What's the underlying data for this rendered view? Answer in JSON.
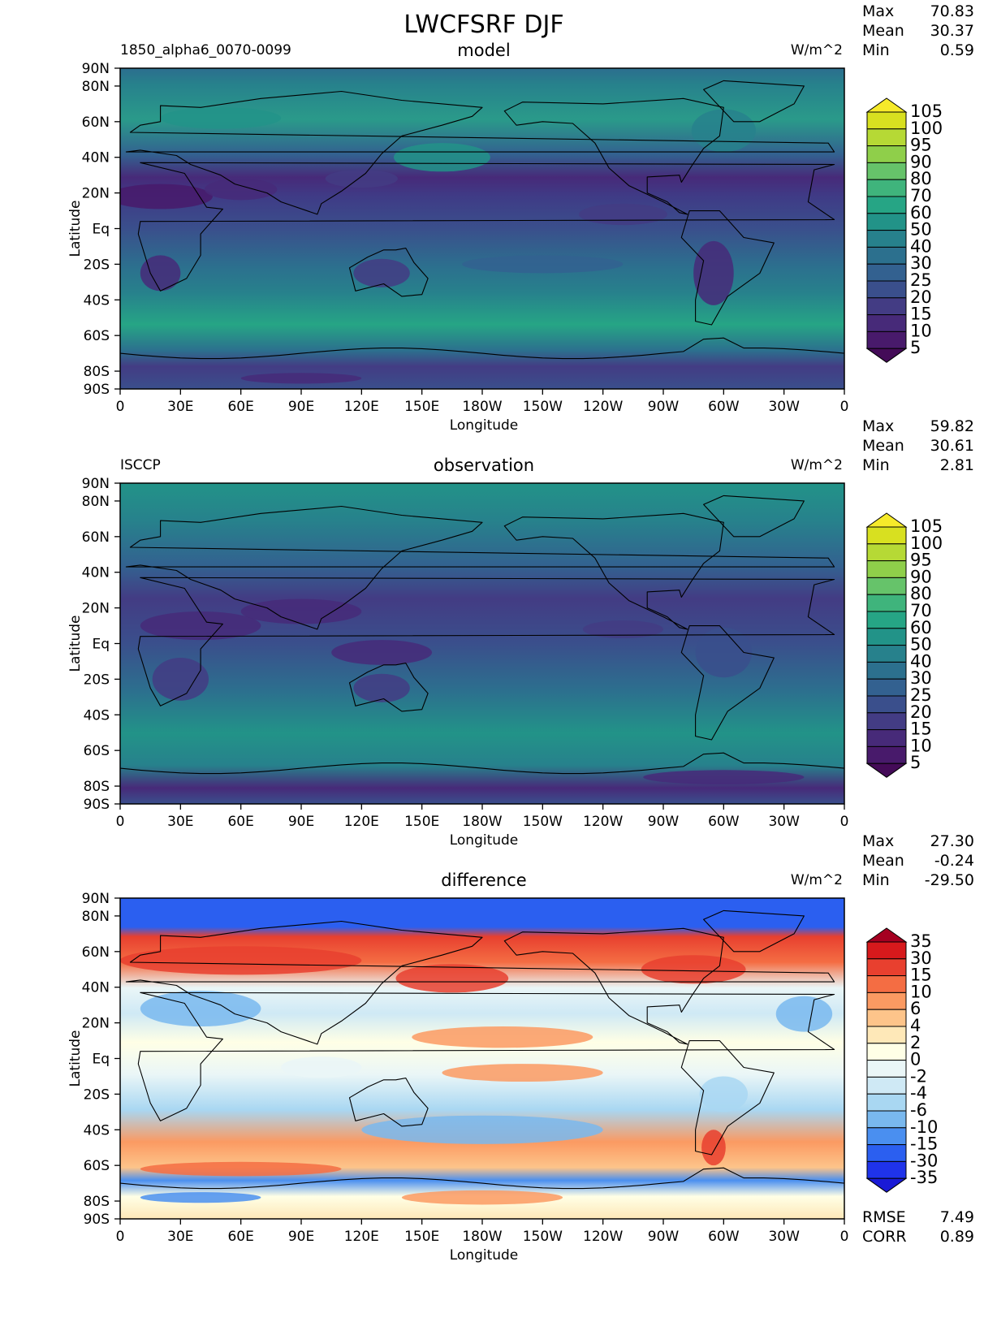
{
  "figure": {
    "title": "LWCFSRF DJF"
  },
  "chart_data": [
    {
      "type": "heatmap",
      "role": "model",
      "panel_title": "model",
      "left_label": "1850_alpha6_0070-0099",
      "units": "W/m^2",
      "stats": {
        "max_label": "Max",
        "max": "70.83",
        "mean_label": "Mean",
        "mean": "30.37",
        "min_label": "Min",
        "min": "0.59"
      },
      "xlabel": "Longitude",
      "ylabel": "Latitude",
      "xticks": [
        "0",
        "30E",
        "60E",
        "90E",
        "120E",
        "150E",
        "180W",
        "150W",
        "120W",
        "90W",
        "60W",
        "30W",
        "0"
      ],
      "yticks": [
        "90N",
        "80N",
        "60N",
        "40N",
        "20N",
        "Eq",
        "20S",
        "40S",
        "60S",
        "80S",
        "90S"
      ],
      "ytick_values": [
        90,
        80,
        60,
        40,
        20,
        0,
        -20,
        -40,
        -60,
        -80,
        -90
      ],
      "xlim": [
        0,
        360
      ],
      "ylim": [
        -90,
        90
      ],
      "colorbar": {
        "labels": [
          "105",
          "100",
          "95",
          "90",
          "80",
          "70",
          "60",
          "50",
          "40",
          "30",
          "25",
          "20",
          "15",
          "10",
          "5"
        ],
        "colors": [
          "#f6ea2a",
          "#d8e020",
          "#b6d935",
          "#8fcf4a",
          "#66c36a",
          "#3fb47c",
          "#26a585",
          "#229388",
          "#27818c",
          "#2c708e",
          "#336190",
          "#3a4f8c",
          "#433c84",
          "#472a79",
          "#481a6b",
          "#440b58"
        ]
      }
    },
    {
      "type": "heatmap",
      "role": "observation",
      "panel_title": "observation",
      "left_label": "ISCCP",
      "units": "W/m^2",
      "stats": {
        "max_label": "Max",
        "max": "59.82",
        "mean_label": "Mean",
        "mean": "30.61",
        "min_label": "Min",
        "min": "2.81"
      },
      "xlabel": "Longitude",
      "ylabel": "Latitude",
      "xticks": [
        "0",
        "30E",
        "60E",
        "90E",
        "120E",
        "150E",
        "180W",
        "150W",
        "120W",
        "90W",
        "60W",
        "30W",
        "0"
      ],
      "yticks": [
        "90N",
        "80N",
        "60N",
        "40N",
        "20N",
        "Eq",
        "20S",
        "40S",
        "60S",
        "80S",
        "90S"
      ],
      "ytick_values": [
        90,
        80,
        60,
        40,
        20,
        0,
        -20,
        -40,
        -60,
        -80,
        -90
      ],
      "xlim": [
        0,
        360
      ],
      "ylim": [
        -90,
        90
      ],
      "colorbar": {
        "labels": [
          "105",
          "100",
          "95",
          "90",
          "80",
          "70",
          "60",
          "50",
          "40",
          "30",
          "25",
          "20",
          "15",
          "10",
          "5"
        ],
        "colors": [
          "#f6ea2a",
          "#d8e020",
          "#b6d935",
          "#8fcf4a",
          "#66c36a",
          "#3fb47c",
          "#26a585",
          "#229388",
          "#27818c",
          "#2c708e",
          "#336190",
          "#3a4f8c",
          "#433c84",
          "#472a79",
          "#481a6b",
          "#440b58"
        ]
      }
    },
    {
      "type": "heatmap",
      "role": "difference",
      "panel_title": "difference",
      "left_label": "",
      "units": "W/m^2",
      "stats": {
        "max_label": "Max",
        "max": "27.30",
        "mean_label": "Mean",
        "mean": "-0.24",
        "min_label": "Min",
        "min": "-29.50"
      },
      "rmse_label": "RMSE",
      "rmse": "7.49",
      "corr_label": "CORR",
      "corr": "0.89",
      "xlabel": "Longitude",
      "ylabel": "Latitude",
      "xticks": [
        "0",
        "30E",
        "60E",
        "90E",
        "120E",
        "150E",
        "180W",
        "150W",
        "120W",
        "90W",
        "60W",
        "30W",
        "0"
      ],
      "yticks": [
        "90N",
        "80N",
        "60N",
        "40N",
        "20N",
        "Eq",
        "20S",
        "40S",
        "60S",
        "80S",
        "90S"
      ],
      "ytick_values": [
        90,
        80,
        60,
        40,
        20,
        0,
        -20,
        -40,
        -60,
        -80,
        -90
      ],
      "xlim": [
        0,
        360
      ],
      "ylim": [
        -90,
        90
      ],
      "colorbar": {
        "labels": [
          "35",
          "30",
          "15",
          "10",
          "6",
          "4",
          "2",
          "0",
          "-2",
          "-4",
          "-6",
          "-10",
          "-15",
          "-30",
          "-35"
        ],
        "colors": [
          "#a50021",
          "#d7191c",
          "#e8402f",
          "#f46d43",
          "#fb9a62",
          "#fdc48a",
          "#fee8b8",
          "#ffffe6",
          "#eaf6f7",
          "#cfe9f5",
          "#a9d7f2",
          "#79b8ee",
          "#4a8ff0",
          "#2b5ff0",
          "#1f33ea",
          "#1a1ad6"
        ]
      }
    }
  ]
}
